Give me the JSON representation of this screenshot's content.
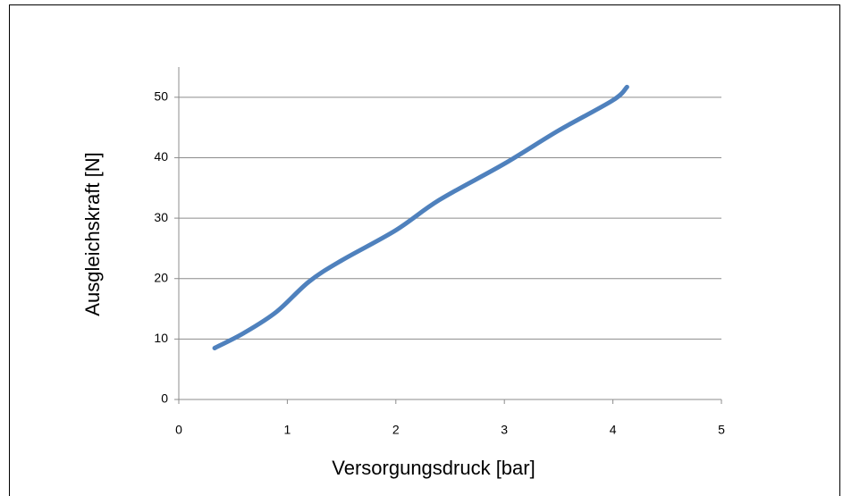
{
  "chart_data": {
    "type": "line",
    "x_label": "Versorgungsdruck [bar]",
    "y_label": "Ausgleichskraft [N]",
    "xlim": [
      0,
      5
    ],
    "xticks": [
      0,
      1,
      2,
      3,
      4,
      5
    ],
    "ylim": [
      0,
      55
    ],
    "yticks": [
      0,
      10,
      20,
      30,
      40,
      50
    ],
    "grid": true,
    "series": [
      {
        "color": "#4f81bd",
        "x": [
          0.33,
          0.6,
          0.9,
          1.2,
          1.5,
          2.0,
          2.4,
          3.0,
          3.5,
          4.0,
          4.13
        ],
        "values": [
          8.5,
          11,
          14.5,
          19.5,
          23,
          28,
          33,
          39,
          44.5,
          49.5,
          51.7
        ]
      }
    ]
  }
}
